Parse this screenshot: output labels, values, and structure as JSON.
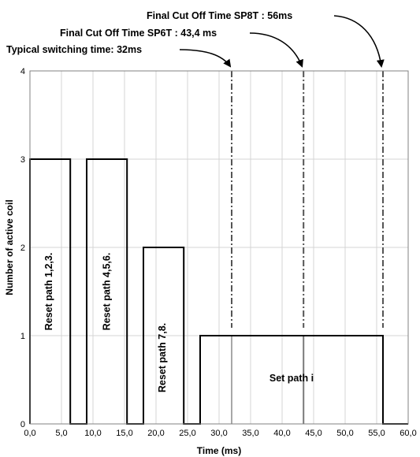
{
  "chart_data": {
    "type": "line",
    "header_fragment": "....",
    "xlabel": "Time (ms)",
    "ylabel": "Number of active coil",
    "xlim": [
      0,
      60
    ],
    "ylim": [
      0,
      4
    ],
    "x_ticks": [
      "0,0",
      "5,0",
      "10,0",
      "15,0",
      "20,0",
      "25,0",
      "30,0",
      "35,0",
      "40,0",
      "45,0",
      "50,0",
      "55,0",
      "60,0"
    ],
    "y_ticks": [
      "0",
      "1",
      "2",
      "3",
      "4"
    ],
    "grid": true,
    "series": [
      {
        "x": [
          0,
          0,
          6.4,
          6.4,
          9.0,
          9.0,
          15.4,
          15.4,
          18.0,
          18.0,
          24.4,
          24.4,
          27.0,
          27.0,
          56.0,
          56.0,
          60.0
        ],
        "y": [
          0,
          3,
          3,
          0,
          0,
          3,
          3,
          0,
          0,
          2,
          2,
          0,
          0,
          1,
          1,
          0,
          0
        ],
        "color": "#000000"
      }
    ],
    "vertical_markers": [
      {
        "x": 32.0,
        "label": "Typical switching time: 32ms"
      },
      {
        "x": 43.4,
        "label": "Final Cut Off Time  SP6T : 43,4 ms"
      },
      {
        "x": 56.0,
        "label": "Final Cut Off Time SP8T : 56ms"
      }
    ],
    "region_labels": [
      {
        "text": "Reset path 1,2,3.",
        "x": 3.0,
        "y": 1.5,
        "rotated": true
      },
      {
        "text": "Reset path 4,5,6.",
        "x": 12.2,
        "y": 1.5,
        "rotated": true
      },
      {
        "text": "Reset path 7,8.",
        "x": 21.0,
        "y": 0.75,
        "rotated": true
      },
      {
        "text": "Set path i",
        "x": 41.5,
        "y": 0.48,
        "rotated": false
      }
    ]
  }
}
